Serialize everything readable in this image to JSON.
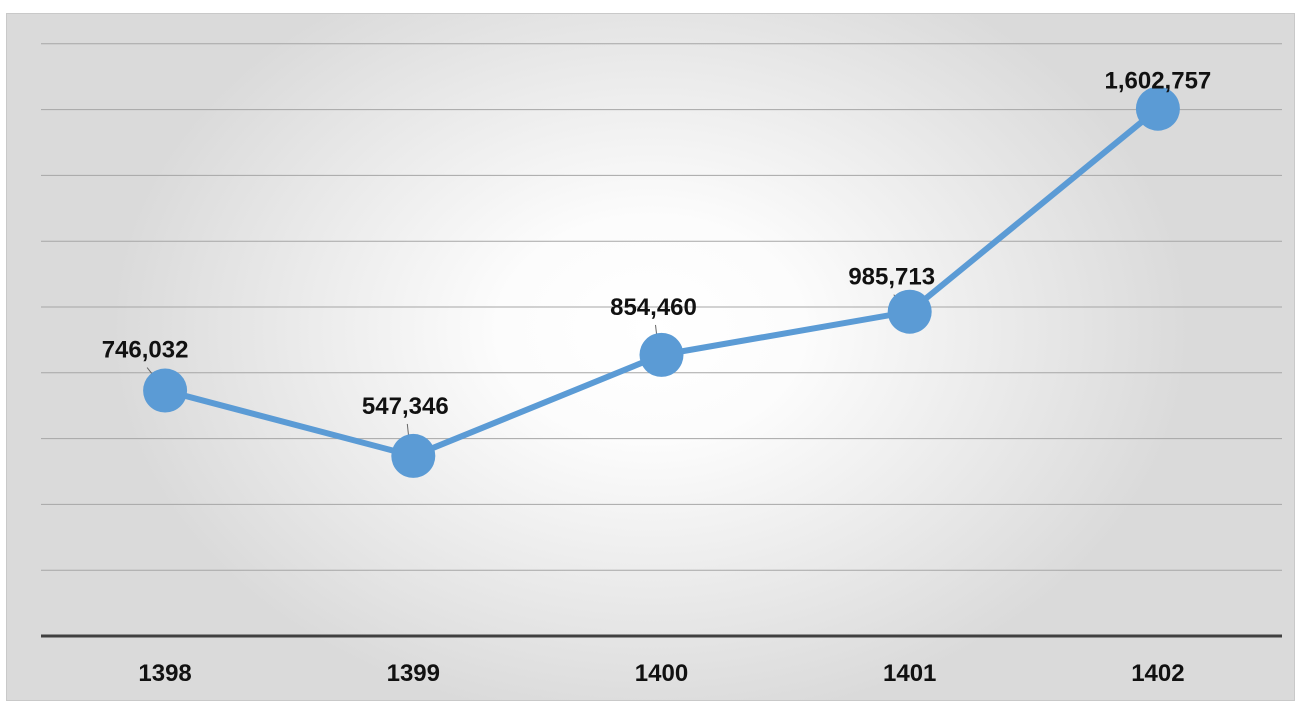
{
  "chart_data": {
    "type": "line",
    "categories": [
      "1398",
      "1399",
      "1400",
      "1401",
      "1402"
    ],
    "series": [
      {
        "values": [
          746032,
          547346,
          854460,
          985713,
          1602757
        ]
      }
    ],
    "data_labels": [
      "746,032",
      "547,346",
      "854,460",
      "985,713",
      "1,602,757"
    ],
    "ylim": [
      0,
      1800000
    ],
    "grid": true,
    "legend": "none",
    "line_color": "#5B9BD5",
    "label_color": "#111111"
  }
}
